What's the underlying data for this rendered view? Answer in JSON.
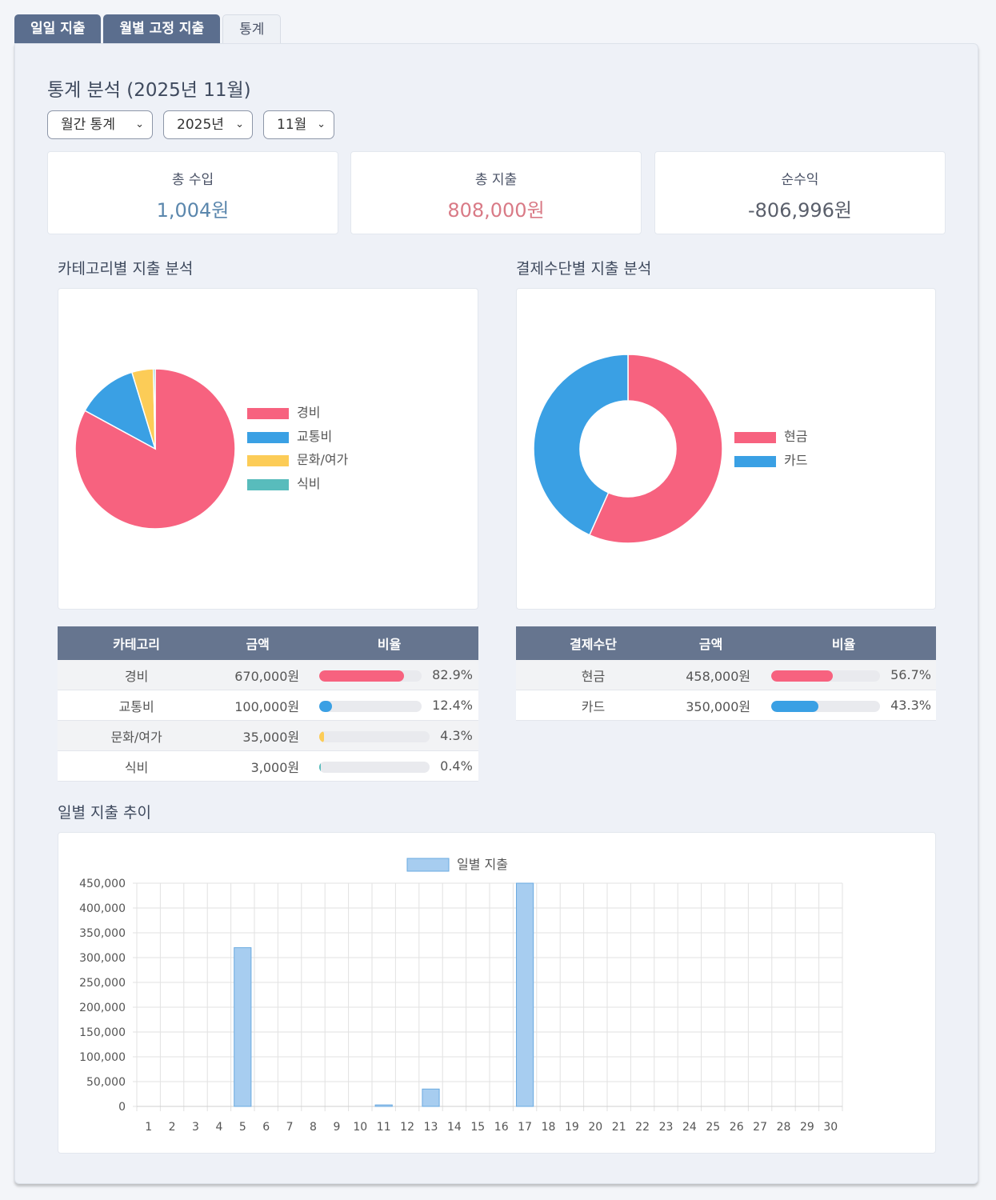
{
  "tabs": [
    {
      "label": "일일 지출",
      "active": false
    },
    {
      "label": "월별 고정 지출",
      "active": false
    },
    {
      "label": "통계",
      "active": true
    }
  ],
  "title": "통계 분석 (2025년 11월)",
  "filters": {
    "mode": "월간 통계",
    "year": "2025년",
    "month": "11월"
  },
  "summary": {
    "income_label": "총 수입",
    "income_value": "1,004원",
    "expense_label": "총 지출",
    "expense_value": "808,000원",
    "net_label": "순수익",
    "net_value": "-806,996원"
  },
  "colors": {
    "income": "#5b87ad",
    "expense": "#d97a86",
    "net": "#5a5f6b",
    "red": "#f7627f",
    "blue": "#3aa0e4",
    "yellow": "#fccc57",
    "teal": "#58bcbc",
    "bar": "#a7cdf0",
    "bar_border": "#6aaae0"
  },
  "category_section": {
    "heading": "카테고리별 지출 분석",
    "columns": [
      "카테고리",
      "금액",
      "비율"
    ],
    "rows": [
      {
        "name": "경비",
        "amount": "670,000원",
        "ratio": "82.9%",
        "pct": 82.9,
        "color": "#f7627f"
      },
      {
        "name": "교통비",
        "amount": "100,000원",
        "ratio": "12.4%",
        "pct": 12.4,
        "color": "#3aa0e4"
      },
      {
        "name": "문화/여가",
        "amount": "35,000원",
        "ratio": "4.3%",
        "pct": 4.3,
        "color": "#fccc57"
      },
      {
        "name": "식비",
        "amount": "3,000원",
        "ratio": "0.4%",
        "pct": 0.4,
        "color": "#58bcbc"
      }
    ]
  },
  "payment_section": {
    "heading": "결제수단별 지출 분석",
    "columns": [
      "결제수단",
      "금액",
      "비율"
    ],
    "rows": [
      {
        "name": "현금",
        "amount": "458,000원",
        "ratio": "56.7%",
        "pct": 56.7,
        "color": "#f7627f"
      },
      {
        "name": "카드",
        "amount": "350,000원",
        "ratio": "43.3%",
        "pct": 43.3,
        "color": "#3aa0e4"
      }
    ]
  },
  "daily_section": {
    "heading": "일별 지출 추이"
  },
  "chart_data": [
    {
      "type": "pie",
      "labels": [
        "경비",
        "교통비",
        "문화/여가",
        "식비"
      ],
      "values": [
        670000,
        100000,
        35000,
        3000
      ],
      "colors": [
        "#f7627f",
        "#3aa0e4",
        "#fccc57",
        "#58bcbc"
      ],
      "legend_position": "right"
    },
    {
      "type": "pie",
      "donut": true,
      "labels": [
        "현금",
        "카드"
      ],
      "values": [
        458000,
        350000
      ],
      "colors": [
        "#f7627f",
        "#3aa0e4"
      ],
      "legend_position": "right"
    },
    {
      "type": "bar",
      "series": [
        {
          "name": "일별 지출",
          "values": [
            0,
            0,
            0,
            0,
            320000,
            0,
            0,
            0,
            0,
            0,
            3000,
            0,
            35000,
            0,
            0,
            0,
            450000,
            0,
            0,
            0,
            0,
            0,
            0,
            0,
            0,
            0,
            0,
            0,
            0,
            0
          ]
        }
      ],
      "categories": [
        "1",
        "2",
        "3",
        "4",
        "5",
        "6",
        "7",
        "8",
        "9",
        "10",
        "11",
        "12",
        "13",
        "14",
        "15",
        "16",
        "17",
        "18",
        "19",
        "20",
        "21",
        "22",
        "23",
        "24",
        "25",
        "26",
        "27",
        "28",
        "29",
        "30"
      ],
      "ylim": [
        0,
        450000
      ],
      "yticks": [
        "0",
        "50,000",
        "100,000",
        "150,000",
        "200,000",
        "250,000",
        "300,000",
        "350,000",
        "400,000",
        "450,000"
      ],
      "grid": true,
      "legend_position": "top"
    }
  ]
}
